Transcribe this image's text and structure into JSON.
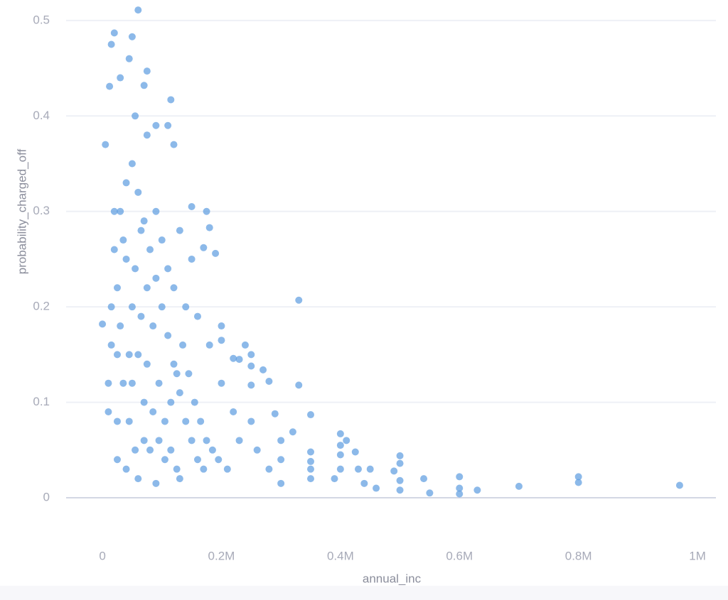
{
  "chart_data": {
    "type": "scatter",
    "x_label": "annual_inc",
    "y_label": "probability_charged_off",
    "color": "#5b9be0",
    "xlim": [
      -61000,
      1031000
    ],
    "ylim": [
      0,
      0.52
    ],
    "xticks": [
      0,
      {
        "value": 200000,
        "label": "0.2M"
      },
      {
        "value": 400000,
        "label": "0.4M"
      },
      {
        "value": 600000,
        "label": "0.6M"
      },
      {
        "value": 800000,
        "label": "0.8M"
      },
      {
        "value": 1000000,
        "label": "1M"
      }
    ],
    "yticks": [
      0,
      0.1,
      0.2,
      0.3,
      0.4,
      0.5
    ],
    "grid": true,
    "x": [
      970000,
      800000,
      800000,
      700000,
      630000,
      600000,
      600000,
      600000,
      550000,
      540000,
      500000,
      500000,
      500000,
      500000,
      490000,
      460000,
      450000,
      440000,
      430000,
      425000,
      410000,
      400000,
      400000,
      400000,
      400000,
      390000,
      350000,
      350000,
      350000,
      350000,
      350000,
      330000,
      330000,
      320000,
      300000,
      300000,
      300000,
      290000,
      280000,
      270000,
      250000,
      250000,
      250000,
      250000,
      240000,
      230000,
      220000,
      200000,
      200000,
      190000,
      180000,
      175000,
      170000,
      150000,
      120000,
      115000,
      110000,
      90000,
      75000,
      70000,
      60000,
      50000,
      45000,
      30000,
      20000,
      15000,
      12000,
      5000,
      0,
      30000,
      40000,
      50000,
      60000,
      70000,
      80000,
      35000,
      45000,
      55000,
      65000,
      75000,
      85000,
      95000,
      105000,
      115000,
      125000,
      40000,
      50000,
      60000,
      70000,
      80000,
      90000,
      100000,
      110000,
      120000,
      130000,
      140000,
      150000,
      160000,
      170000,
      25000,
      25000,
      25000,
      25000,
      30000,
      35000,
      45000,
      55000,
      65000,
      75000,
      85000,
      95000,
      105000,
      115000,
      125000,
      135000,
      145000,
      155000,
      165000,
      175000,
      185000,
      195000,
      210000,
      220000,
      230000,
      260000,
      280000,
      40000,
      60000,
      90000,
      130000,
      20000,
      20000,
      15000,
      10000,
      10000,
      15000,
      50000,
      70000,
      90000,
      100000,
      110000,
      120000,
      140000,
      160000,
      180000,
      200000,
      150000,
      130000,
      75000,
      55000
    ],
    "values": [
      0.013,
      0.022,
      0.016,
      0.012,
      0.008,
      0.022,
      0.01,
      0.004,
      0.005,
      0.02,
      0.044,
      0.036,
      0.018,
      0.008,
      0.028,
      0.01,
      0.03,
      0.015,
      0.03,
      0.048,
      0.06,
      0.067,
      0.055,
      0.045,
      0.03,
      0.02,
      0.087,
      0.048,
      0.038,
      0.03,
      0.02,
      0.207,
      0.118,
      0.069,
      0.06,
      0.04,
      0.015,
      0.088,
      0.122,
      0.134,
      0.15,
      0.138,
      0.118,
      0.08,
      0.16,
      0.145,
      0.146,
      0.18,
      0.165,
      0.256,
      0.283,
      0.3,
      0.262,
      0.305,
      0.37,
      0.417,
      0.39,
      0.39,
      0.447,
      0.432,
      0.511,
      0.483,
      0.46,
      0.44,
      0.487,
      0.475,
      0.431,
      0.37,
      0.182,
      0.3,
      0.25,
      0.2,
      0.15,
      0.1,
      0.05,
      0.12,
      0.08,
      0.05,
      0.28,
      0.22,
      0.18,
      0.12,
      0.08,
      0.05,
      0.03,
      0.33,
      0.35,
      0.32,
      0.29,
      0.26,
      0.23,
      0.2,
      0.17,
      0.14,
      0.11,
      0.08,
      0.06,
      0.04,
      0.03,
      0.22,
      0.15,
      0.08,
      0.04,
      0.18,
      0.27,
      0.15,
      0.24,
      0.19,
      0.14,
      0.09,
      0.06,
      0.04,
      0.1,
      0.13,
      0.16,
      0.13,
      0.1,
      0.08,
      0.06,
      0.05,
      0.04,
      0.03,
      0.09,
      0.06,
      0.05,
      0.03,
      0.03,
      0.02,
      0.015,
      0.02,
      0.3,
      0.26,
      0.2,
      0.12,
      0.09,
      0.16,
      0.12,
      0.06,
      0.3,
      0.27,
      0.24,
      0.22,
      0.2,
      0.19,
      0.16,
      0.12,
      0.25,
      0.28,
      0.38,
      0.4
    ]
  }
}
